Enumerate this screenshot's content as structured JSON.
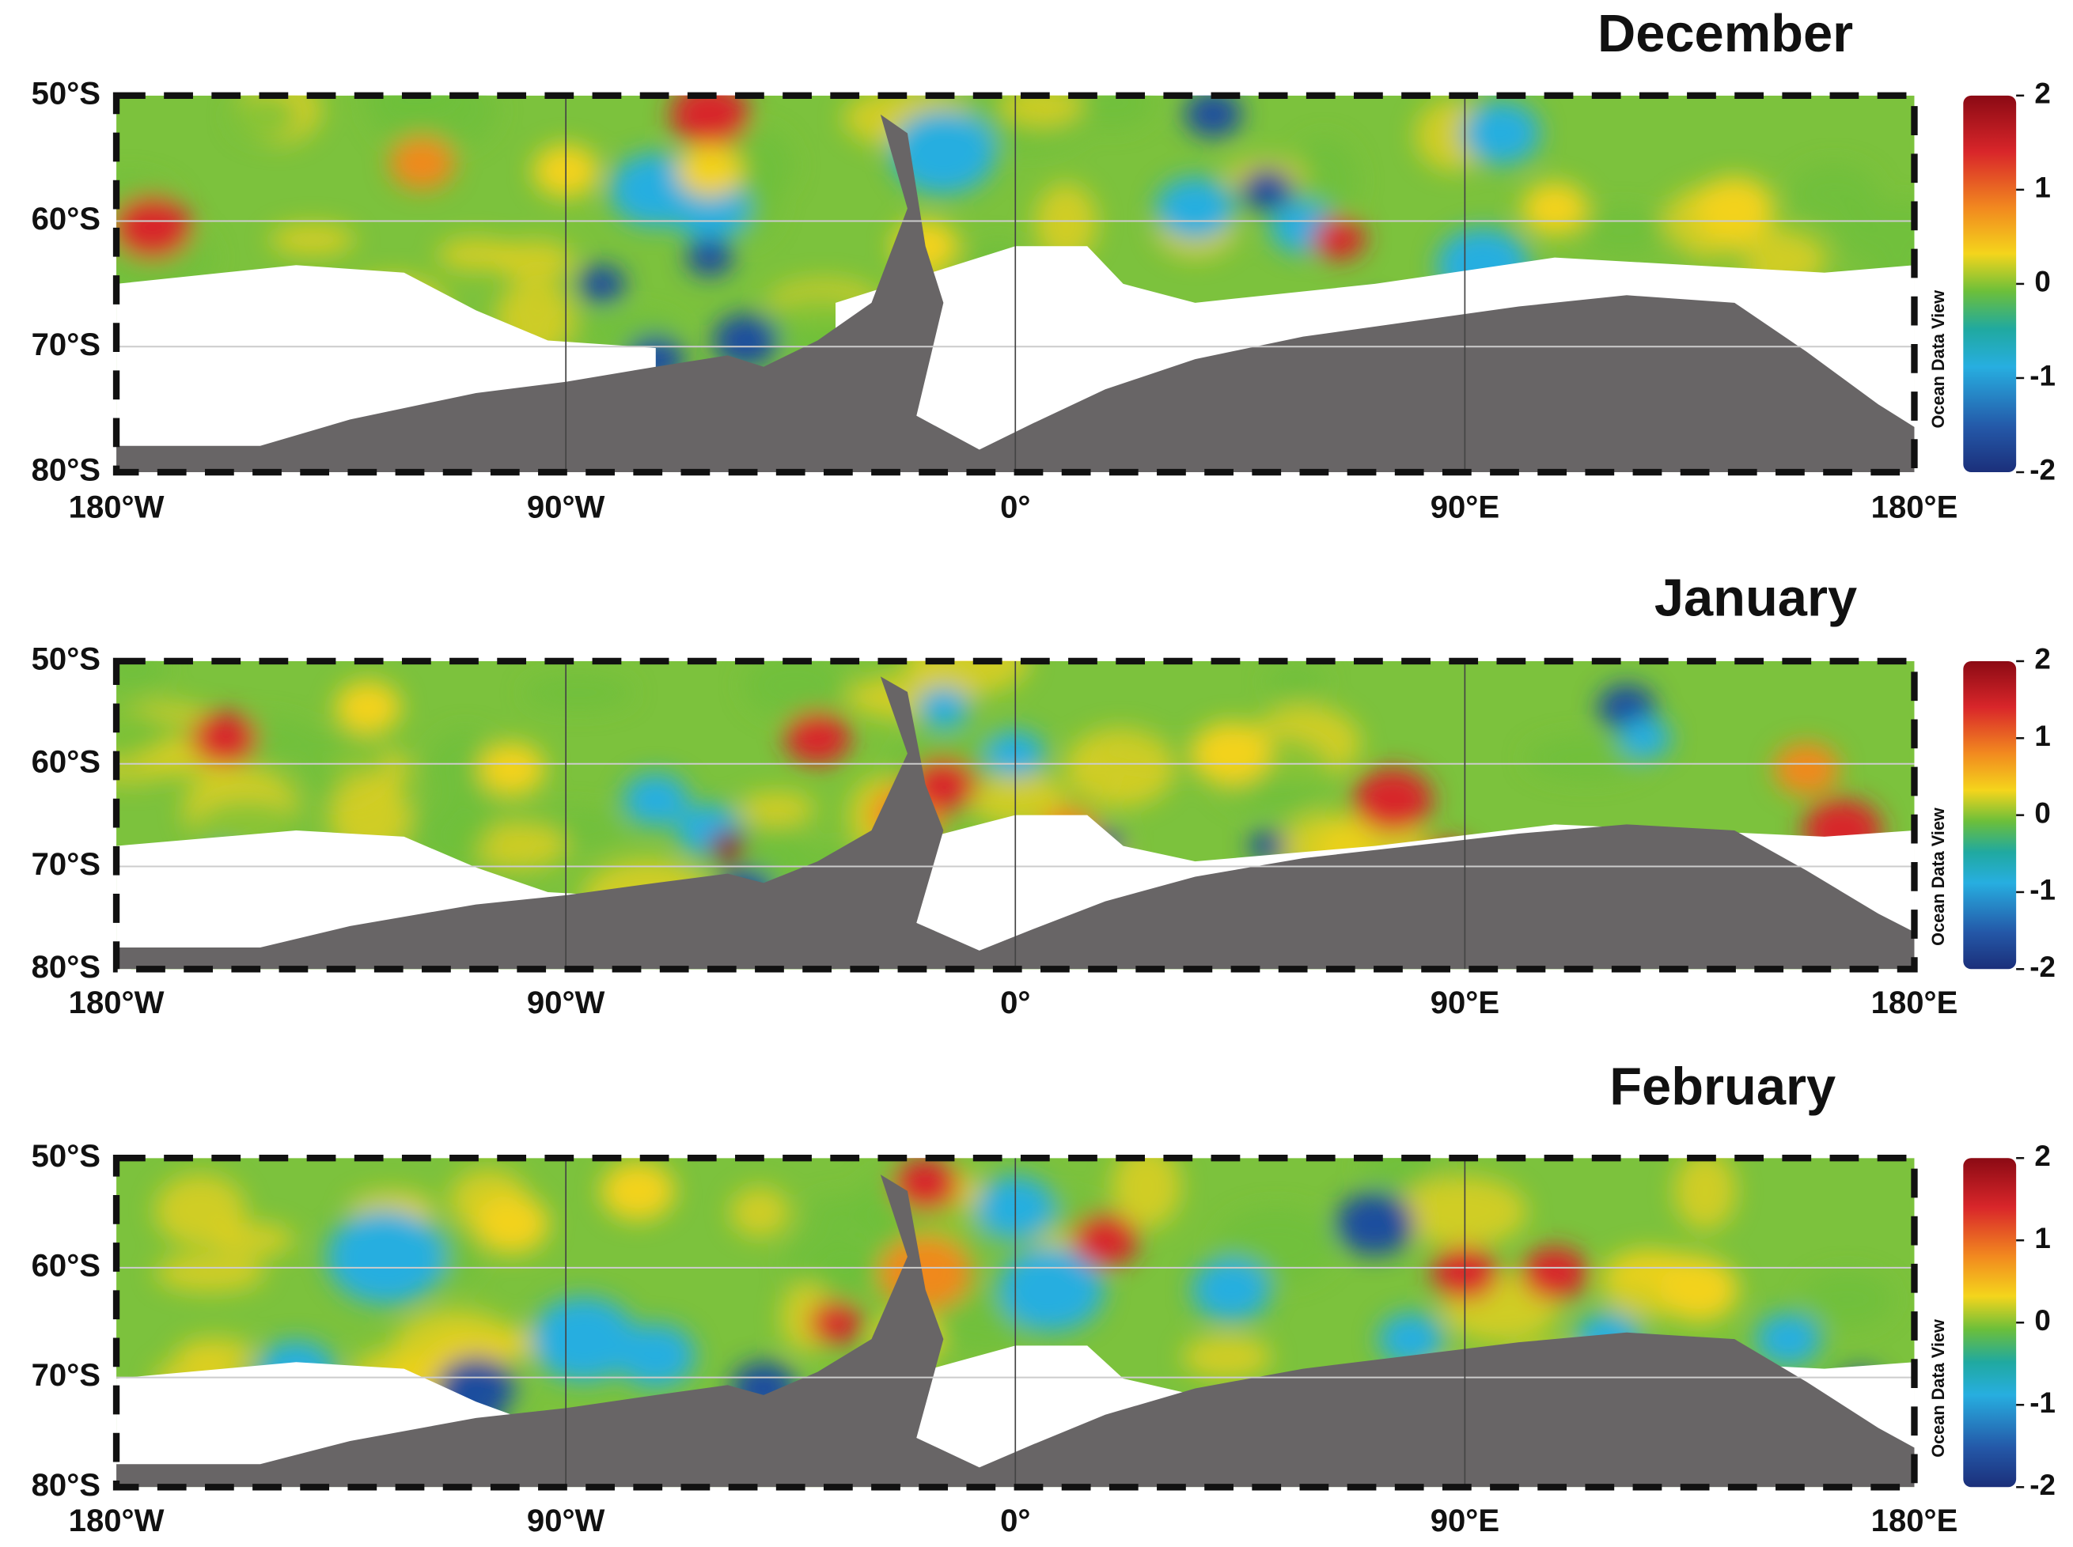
{
  "panels": [
    {
      "title": "December",
      "lat_labels": [
        "50°S",
        "60°S",
        "70°S",
        "80°S"
      ],
      "lon_labels": [
        "180°W",
        "90°W",
        "0°",
        "90°E",
        "180°E"
      ],
      "colorbar": {
        "ticks": [
          2,
          1,
          0,
          -1,
          -2
        ],
        "label": "Ocean Data View"
      }
    },
    {
      "title": "January",
      "lat_labels": [
        "50°S",
        "60°S",
        "70°S",
        "80°S"
      ],
      "lon_labels": [
        "180°W",
        "90°W",
        "0°",
        "90°E",
        "180°E"
      ],
      "colorbar": {
        "ticks": [
          2,
          1,
          0,
          -1,
          -2
        ],
        "label": "Ocean Data View"
      }
    },
    {
      "title": "February",
      "lat_labels": [
        "50°S",
        "60°S",
        "70°S",
        "80°S"
      ],
      "lon_labels": [
        "180°W",
        "90°W",
        "0°",
        "90°E",
        "180°E"
      ],
      "colorbar": {
        "ticks": [
          2,
          1,
          0,
          -1,
          -2
        ],
        "label": "Ocean Data View"
      }
    }
  ]
}
